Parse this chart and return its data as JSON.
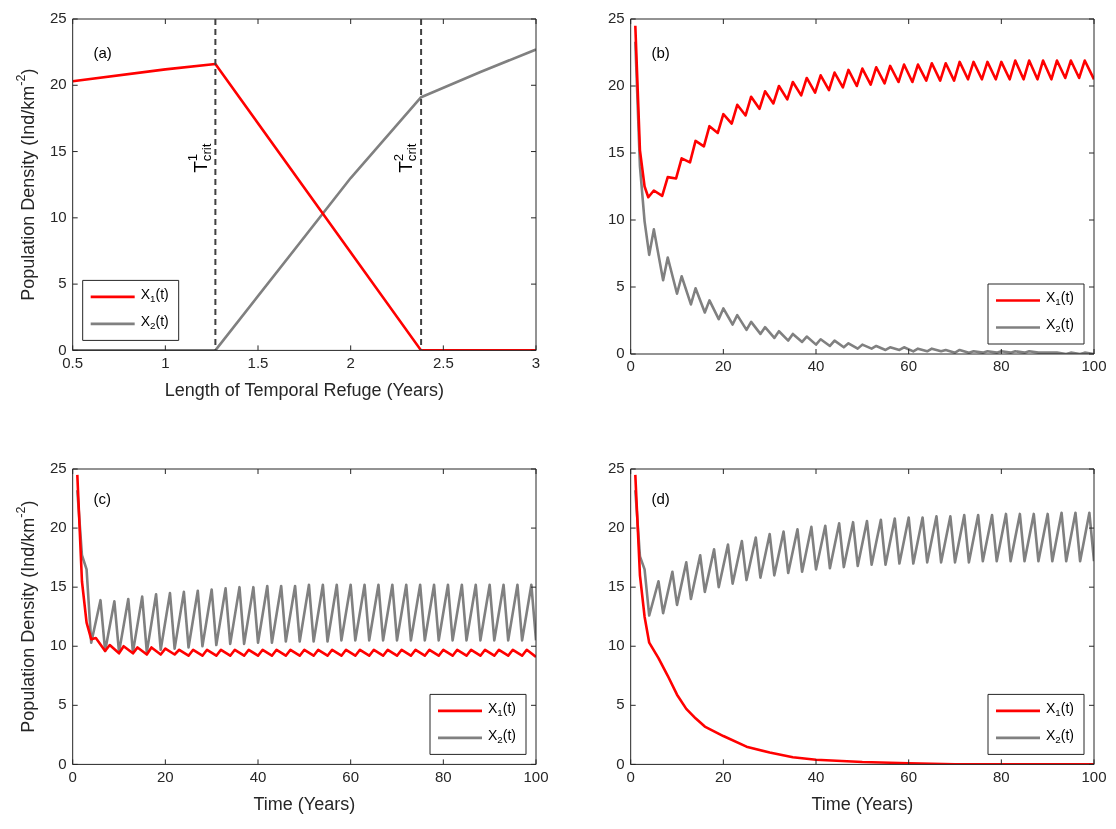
{
  "chart_data": [
    {
      "type": "line",
      "xlabel": "Length of Temporal Refuge (Years)",
      "ylabel": "Population Density (Ind/km$^{-2}$)",
      "xlim": [
        0.5,
        3
      ],
      "xticks": [
        0.5,
        1,
        1.5,
        2,
        2.5,
        3
      ],
      "ylim": [
        0,
        25
      ],
      "yticks": [
        0,
        5,
        10,
        15,
        20,
        25
      ],
      "grid": false,
      "legend": "bottom left",
      "marker": "none",
      "annotations": [
        "(a)"
      ],
      "ref_lines": [
        {
          "axis": "x",
          "value": 1.27,
          "label": "T$^{1}$$_{crit}$",
          "color": "#404040",
          "line_style": "dashed"
        },
        {
          "axis": "x",
          "value": 2.38,
          "label": "T$^{2}$$_{crit}$",
          "color": "#404040",
          "line_style": "dashed"
        }
      ],
      "series": [
        {
          "name": "X$_{1}$(t)",
          "color": "#ff0000",
          "x": [
            0.5,
            1,
            1.27,
            2.38,
            3
          ],
          "values": [
            20.3,
            21.2,
            21.6,
            0,
            0
          ]
        },
        {
          "name": "X$_{2}$(t)",
          "color": "#808080",
          "x": [
            0.5,
            1.27,
            2,
            2.38,
            2.7,
            3
          ],
          "values": [
            0,
            0,
            13.0,
            19.1,
            21.0,
            22.7
          ]
        }
      ]
    },
    {
      "type": "line",
      "xlim": [
        0,
        100
      ],
      "xticks": [
        0,
        20,
        40,
        60,
        80,
        100
      ],
      "ylim": [
        0,
        25
      ],
      "yticks": [
        0,
        5,
        10,
        15,
        20,
        25
      ],
      "grid": false,
      "legend": "bottom right",
      "marker": "none",
      "annotations": [
        "(b)"
      ],
      "series": [
        {
          "name": "X$_{1}$(t)",
          "color": "#ff0000",
          "x": [
            1,
            2,
            3,
            3.8,
            5,
            6.8,
            8,
            9.8,
            11,
            12.8,
            14,
            15.8,
            17,
            18.8,
            20,
            21.8,
            23,
            24.8,
            26,
            27.8,
            29,
            30.8,
            32,
            33.8,
            35,
            36.8,
            38,
            39.8,
            41,
            42.8,
            44,
            45.8,
            47,
            48.8,
            50,
            51.8,
            53,
            54.8,
            56,
            57.8,
            59,
            60.8,
            62,
            63.8,
            65,
            66.8,
            68,
            69.8,
            71,
            72.8,
            74,
            75.8,
            77,
            78.8,
            80,
            81.8,
            83,
            84.8,
            86,
            87.8,
            89,
            90.8,
            92,
            93.8,
            95,
            96.8,
            98,
            100
          ],
          "values": [
            24.5,
            15.2,
            12.5,
            11.7,
            12.2,
            11.8,
            13.2,
            13.1,
            14.6,
            14.3,
            15.9,
            15.5,
            17.0,
            16.5,
            17.9,
            17.2,
            18.6,
            17.8,
            19.2,
            18.3,
            19.6,
            18.7,
            20.0,
            19.0,
            20.3,
            19.3,
            20.6,
            19.5,
            20.8,
            19.7,
            21.0,
            19.9,
            21.2,
            20.0,
            21.3,
            20.1,
            21.4,
            20.2,
            21.5,
            20.3,
            21.6,
            20.3,
            21.6,
            20.4,
            21.7,
            20.4,
            21.7,
            20.4,
            21.8,
            20.5,
            21.8,
            20.5,
            21.8,
            20.5,
            21.8,
            20.5,
            21.9,
            20.5,
            21.9,
            20.5,
            21.9,
            20.5,
            21.9,
            20.6,
            21.9,
            20.6,
            21.9,
            20.5
          ]
        },
        {
          "name": "X$_{2}$(t)",
          "color": "#808080",
          "x": [
            1,
            2,
            3,
            4,
            5,
            7,
            8,
            10,
            11,
            13,
            14,
            16,
            17,
            19,
            20,
            22,
            23,
            25,
            26,
            28,
            29,
            31,
            32,
            34,
            35,
            37,
            38,
            40,
            41,
            43,
            44,
            46,
            47,
            49,
            50,
            52,
            53,
            55,
            56,
            58,
            59,
            61,
            62,
            64,
            65,
            67,
            68,
            70,
            71,
            73,
            74,
            76,
            77,
            79,
            80,
            82,
            83,
            85,
            86,
            88,
            89,
            91,
            92,
            94,
            95,
            97,
            98,
            100
          ],
          "values": [
            23.3,
            14.0,
            9.9,
            7.4,
            9.3,
            5.5,
            7.2,
            4.5,
            5.8,
            3.7,
            4.9,
            3.1,
            4.0,
            2.6,
            3.4,
            2.2,
            2.9,
            1.8,
            2.4,
            1.5,
            2.0,
            1.2,
            1.7,
            1.0,
            1.5,
            0.9,
            1.3,
            0.7,
            1.1,
            0.6,
            1.0,
            0.5,
            0.8,
            0.4,
            0.7,
            0.4,
            0.6,
            0.3,
            0.5,
            0.3,
            0.5,
            0.2,
            0.4,
            0.2,
            0.4,
            0.2,
            0.3,
            0.1,
            0.3,
            0.1,
            0.2,
            0.1,
            0.2,
            0.1,
            0.2,
            0.1,
            0.2,
            0.1,
            0.2,
            0.1,
            0.1,
            0.1,
            0.1,
            0.0,
            0.1,
            0.0,
            0.1,
            0.0
          ]
        }
      ]
    },
    {
      "type": "line",
      "xlabel": "Time (Years)",
      "ylabel": "Population Density (Ind/km$^{-2}$)",
      "xlim": [
        0,
        100
      ],
      "xticks": [
        0,
        20,
        40,
        60,
        80,
        100
      ],
      "ylim": [
        0,
        25
      ],
      "yticks": [
        0,
        5,
        10,
        15,
        20,
        25
      ],
      "grid": false,
      "legend": "bottom right",
      "marker": "none",
      "annotations": [
        "(c)"
      ],
      "series": [
        {
          "name": "X$_{1}$(t)",
          "color": "#ff0000",
          "x": [
            1,
            2,
            3,
            4,
            5,
            7,
            8,
            10,
            11,
            13,
            14,
            16,
            17,
            19,
            20,
            22,
            23,
            25,
            26,
            28,
            29,
            31,
            32,
            34,
            35,
            37,
            38,
            40,
            41,
            43,
            44,
            46,
            47,
            49,
            50,
            52,
            53,
            55,
            56,
            58,
            59,
            61,
            62,
            64,
            65,
            67,
            68,
            70,
            71,
            73,
            74,
            76,
            77,
            79,
            80,
            82,
            83,
            85,
            86,
            88,
            89,
            91,
            92,
            94,
            95,
            97,
            98,
            100
          ],
          "values": [
            24.5,
            15.5,
            12.0,
            10.6,
            10.7,
            9.6,
            10.1,
            9.4,
            10.0,
            9.4,
            9.9,
            9.3,
            9.9,
            9.3,
            9.8,
            9.3,
            9.7,
            9.2,
            9.7,
            9.2,
            9.7,
            9.2,
            9.7,
            9.2,
            9.7,
            9.2,
            9.7,
            9.2,
            9.7,
            9.2,
            9.7,
            9.2,
            9.7,
            9.2,
            9.7,
            9.2,
            9.7,
            9.2,
            9.7,
            9.2,
            9.7,
            9.2,
            9.7,
            9.2,
            9.7,
            9.2,
            9.7,
            9.2,
            9.7,
            9.2,
            9.7,
            9.2,
            9.7,
            9.2,
            9.7,
            9.2,
            9.7,
            9.2,
            9.7,
            9.2,
            9.7,
            9.2,
            9.7,
            9.2,
            9.7,
            9.2,
            9.7,
            9.1
          ]
        },
        {
          "name": "X$_{2}$(t)",
          "color": "#808080",
          "x": [
            1,
            2,
            3,
            4,
            6,
            7,
            9,
            10,
            12,
            13,
            15,
            16,
            18,
            19,
            21,
            22,
            24,
            25,
            27,
            28,
            30,
            31,
            33,
            34,
            36,
            37,
            39,
            40,
            42,
            43,
            45,
            46,
            48,
            49,
            51,
            52,
            54,
            55,
            57,
            58,
            60,
            61,
            63,
            64,
            66,
            67,
            69,
            70,
            72,
            73,
            75,
            76,
            78,
            79,
            81,
            82,
            84,
            85,
            87,
            88,
            90,
            91,
            93,
            94,
            96,
            97,
            99,
            100
          ],
          "values": [
            23.2,
            17.7,
            16.5,
            10.3,
            13.9,
            9.6,
            13.8,
            9.5,
            14.0,
            9.5,
            14.2,
            9.5,
            14.4,
            9.7,
            14.5,
            9.8,
            14.6,
            9.9,
            14.7,
            10.0,
            14.8,
            10.1,
            14.9,
            10.2,
            15.0,
            10.2,
            15.0,
            10.3,
            15.1,
            10.3,
            15.1,
            10.4,
            15.1,
            10.4,
            15.2,
            10.4,
            15.2,
            10.4,
            15.2,
            10.5,
            15.2,
            10.5,
            15.2,
            10.5,
            15.2,
            10.5,
            15.2,
            10.5,
            15.2,
            10.5,
            15.2,
            10.5,
            15.2,
            10.5,
            15.2,
            10.5,
            15.2,
            10.5,
            15.2,
            10.5,
            15.2,
            10.5,
            15.2,
            10.5,
            15.2,
            10.5,
            15.2,
            10.5
          ]
        }
      ]
    },
    {
      "type": "line",
      "xlabel": "Time (Years)",
      "xlim": [
        0,
        100
      ],
      "xticks": [
        0,
        20,
        40,
        60,
        80,
        100
      ],
      "ylim": [
        0,
        25
      ],
      "yticks": [
        0,
        5,
        10,
        15,
        20,
        25
      ],
      "grid": false,
      "legend": "bottom right",
      "marker": "none",
      "annotations": [
        "(d)"
      ],
      "series": [
        {
          "name": "X$_{1}$(t)",
          "color": "#ff0000",
          "x": [
            1,
            2,
            3,
            4,
            6,
            8,
            10,
            12,
            14,
            16,
            18,
            20,
            25,
            30,
            35,
            40,
            50,
            60,
            70,
            80,
            100
          ],
          "values": [
            24.5,
            16.0,
            12.5,
            10.3,
            9.0,
            7.5,
            5.9,
            4.7,
            3.9,
            3.2,
            2.8,
            2.4,
            1.5,
            1.0,
            0.6,
            0.4,
            0.2,
            0.1,
            0.0,
            0.0,
            0.0
          ]
        },
        {
          "name": "X$_{2}$(t)",
          "color": "#808080",
          "x": [
            1,
            2,
            3,
            4,
            6,
            7,
            9,
            10,
            12,
            13,
            15,
            16,
            18,
            19,
            21,
            22,
            24,
            25,
            27,
            28,
            30,
            31,
            33,
            34,
            36,
            37,
            39,
            40,
            42,
            43,
            45,
            46,
            48,
            49,
            51,
            52,
            54,
            55,
            57,
            58,
            60,
            61,
            63,
            64,
            66,
            67,
            69,
            70,
            72,
            73,
            75,
            76,
            78,
            79,
            81,
            82,
            84,
            85,
            87,
            88,
            90,
            91,
            93,
            94,
            96,
            97,
            99,
            100
          ],
          "values": [
            23.2,
            17.6,
            16.5,
            12.6,
            15.5,
            12.8,
            16.3,
            13.5,
            17.1,
            14.0,
            17.7,
            14.6,
            18.2,
            15.0,
            18.6,
            15.3,
            18.9,
            15.6,
            19.2,
            15.8,
            19.5,
            16.0,
            19.7,
            16.2,
            19.9,
            16.3,
            20.1,
            16.5,
            20.2,
            16.6,
            20.4,
            16.7,
            20.5,
            16.8,
            20.6,
            16.9,
            20.7,
            16.9,
            20.8,
            17.0,
            20.9,
            17.0,
            20.9,
            17.1,
            21.0,
            17.1,
            21.0,
            17.1,
            21.1,
            17.1,
            21.1,
            17.2,
            21.1,
            17.2,
            21.2,
            17.2,
            21.2,
            17.2,
            21.2,
            17.2,
            21.2,
            17.2,
            21.3,
            17.2,
            21.3,
            17.2,
            21.3,
            17.2
          ]
        }
      ]
    }
  ]
}
